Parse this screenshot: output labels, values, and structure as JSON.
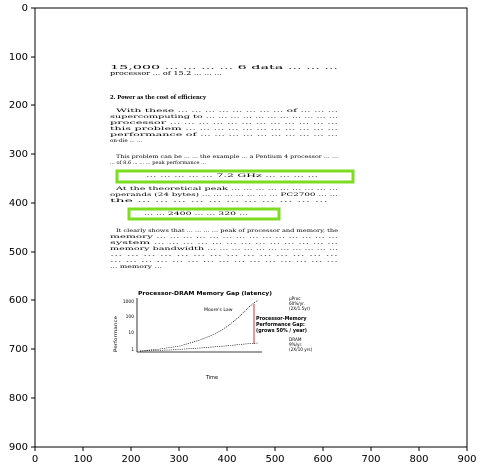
{
  "axes": {
    "x_ticks": [
      "0",
      "100",
      "200",
      "300",
      "400",
      "500",
      "600",
      "700",
      "800",
      "900"
    ],
    "y_ticks": [
      "0",
      "100",
      "200",
      "300",
      "400",
      "500",
      "600",
      "700",
      "800",
      "900"
    ]
  },
  "document": {
    "intro_line1": "15,000 ... ... ... ... 6 data ... ... ...",
    "intro_line2": "processor ... of 15.2 ... ... ...",
    "section_heading": "2.    Power as the cost of efficiency",
    "p1_lines": [
      "With these ... ... ... ... ... ... ... ... of ... ... ...",
      "supercomputing to ... ... ... ... ... ... ... ... ... ... ...",
      "processor ... ... ... ... ... ... ... ... ... ... ... ...",
      "this problem ... ... ... ... ... ... ... ... ... ... ...",
      "performance of ... ... ... ... ... ... ... ... ... ...",
      "on-die ... ..."
    ],
    "p2_lines": [
      "This problem can be ... ... the example ... a Pentium 4 processor ... ...",
      "... of 8.6 ... ... ... peak performance ..."
    ],
    "box1_text": "... ... ... ... ... 7.2 GHz ... ... ... ...",
    "p3_lines": [
      "At the theoretical peak ... ... ... ... ... ... ... ... ...",
      "operands (24 bytes) ... ... ... ... ... ... ... PC2700 ... ...",
      "the ... ... ... ... ... ... ... ... ... ... ..."
    ],
    "box2_text": "... ... 2400 ... ... 320 ...",
    "p4_lines": [
      "It clearly shows that ... ... ... ... peak of processor and memory, the",
      "memory ... ... ... ... ... ... ... ... ... ... ... ... ... ...",
      "system ... ... ... ... ... ... ... ... ... ... ... ... ...",
      "memory bandwidth ... ... ... ... ... ... ... ... ... ... ...",
      "... ... ... ... ... ... ... ... ... ... ... ... ... ...",
      "... ... ... ... ... ... ... ... ... ... ... ... ... ... ...",
      "... memory ..."
    ],
    "figure": {
      "title": "Processor-DRAM Memory Gap (latency)",
      "y_label": "Performance",
      "x_label": "Time",
      "y_ticks": [
        "1000",
        "100",
        "10",
        "1"
      ],
      "moores_law": "Moore's Law",
      "cpu_label_lines": [
        "µProc",
        "60%/yr.",
        "(2X/1.5yr)"
      ],
      "gap_label_lines": [
        "Processor-Memory",
        "Performance Gap:",
        "(grows 50% / year)"
      ],
      "dram_label_lines": [
        "DRAM",
        "9%/yr.",
        "(2X/10 yrs)"
      ]
    }
  },
  "highlight_color": "#7ddc1f"
}
